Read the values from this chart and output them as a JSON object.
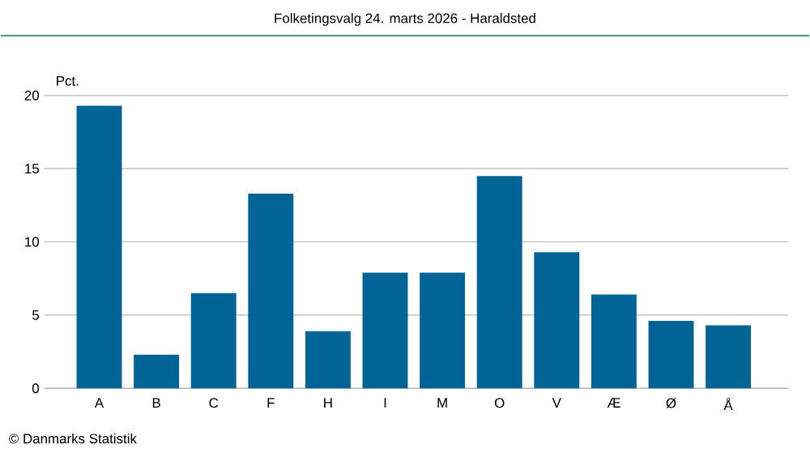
{
  "chart_data": {
    "type": "bar",
    "title": "Folketingsvalg 24. marts 2026 - Haraldsted",
    "ylabel": "Pct.",
    "categories": [
      "A",
      "B",
      "C",
      "F",
      "H",
      "I",
      "M",
      "O",
      "V",
      "Æ",
      "Ø",
      "Å"
    ],
    "values": [
      19.3,
      2.3,
      6.5,
      13.3,
      3.9,
      7.9,
      7.9,
      14.5,
      9.3,
      6.4,
      4.6,
      4.3
    ],
    "color": "#006496",
    "ylim": [
      0,
      20
    ],
    "yticks": [
      0,
      5,
      10,
      15,
      20
    ],
    "grid": "y",
    "annotations": [
      "© Danmarks Statistik"
    ]
  }
}
